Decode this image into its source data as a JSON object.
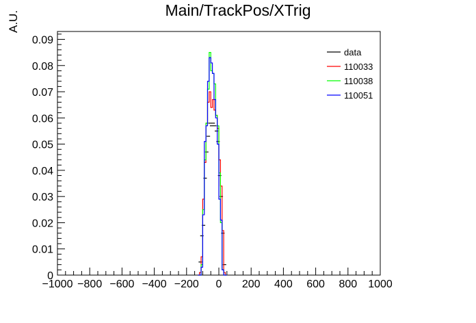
{
  "chart_data": {
    "type": "histogram",
    "title": "Main/TrackPos/XTrig",
    "xlabel": "",
    "ylabel": "A.U.",
    "xlim": [
      -1000,
      1000
    ],
    "ylim": [
      0,
      0.093
    ],
    "x_ticks": [
      -1000,
      -800,
      -600,
      -400,
      -200,
      0,
      200,
      400,
      600,
      800,
      1000
    ],
    "y_ticks": [
      0,
      0.01,
      0.02,
      0.03,
      0.04,
      0.05,
      0.06,
      0.07,
      0.08,
      0.09
    ],
    "x_tick_labels": [
      "−1000",
      "−800",
      "−600",
      "−400",
      "−200",
      "0",
      "200",
      "400",
      "600",
      "800",
      "1000"
    ],
    "y_tick_labels": [
      "0",
      "0.01",
      "0.02",
      "0.03",
      "0.04",
      "0.05",
      "0.06",
      "0.07",
      "0.08",
      "0.09"
    ],
    "bin_edges_start": -130,
    "bin_width": 10,
    "legend_position": "top-right",
    "grid": false,
    "series": [
      {
        "name": "data",
        "color": "#000000",
        "style": "markers",
        "values": [
          0.0,
          0.005,
          0.015,
          0.019,
          0.037,
          0.047,
          0.053,
          0.058,
          0.057,
          0.058,
          0.057,
          0.055,
          0.051,
          0.038,
          0.03,
          0.016,
          0.004,
          0.0
        ]
      },
      {
        "name": "110033",
        "color": "#ff0000",
        "style": "step",
        "values": [
          0.0,
          0.001,
          0.007,
          0.029,
          0.043,
          0.058,
          0.066,
          0.07,
          0.064,
          0.067,
          0.063,
          0.061,
          0.056,
          0.044,
          0.034,
          0.017,
          0.001,
          0.0
        ]
      },
      {
        "name": "110038",
        "color": "#00ff00",
        "style": "step",
        "values": [
          0.0,
          0.0,
          0.004,
          0.025,
          0.044,
          0.058,
          0.071,
          0.085,
          0.078,
          0.077,
          0.073,
          0.061,
          0.057,
          0.039,
          0.02,
          0.002,
          0.0,
          0.0
        ]
      },
      {
        "name": "110051",
        "color": "#0000ff",
        "style": "step",
        "values": [
          0.0,
          0.0,
          0.003,
          0.023,
          0.051,
          0.057,
          0.074,
          0.083,
          0.081,
          0.077,
          0.067,
          0.06,
          0.05,
          0.029,
          0.021,
          0.002,
          0.0,
          0.0
        ]
      }
    ]
  }
}
